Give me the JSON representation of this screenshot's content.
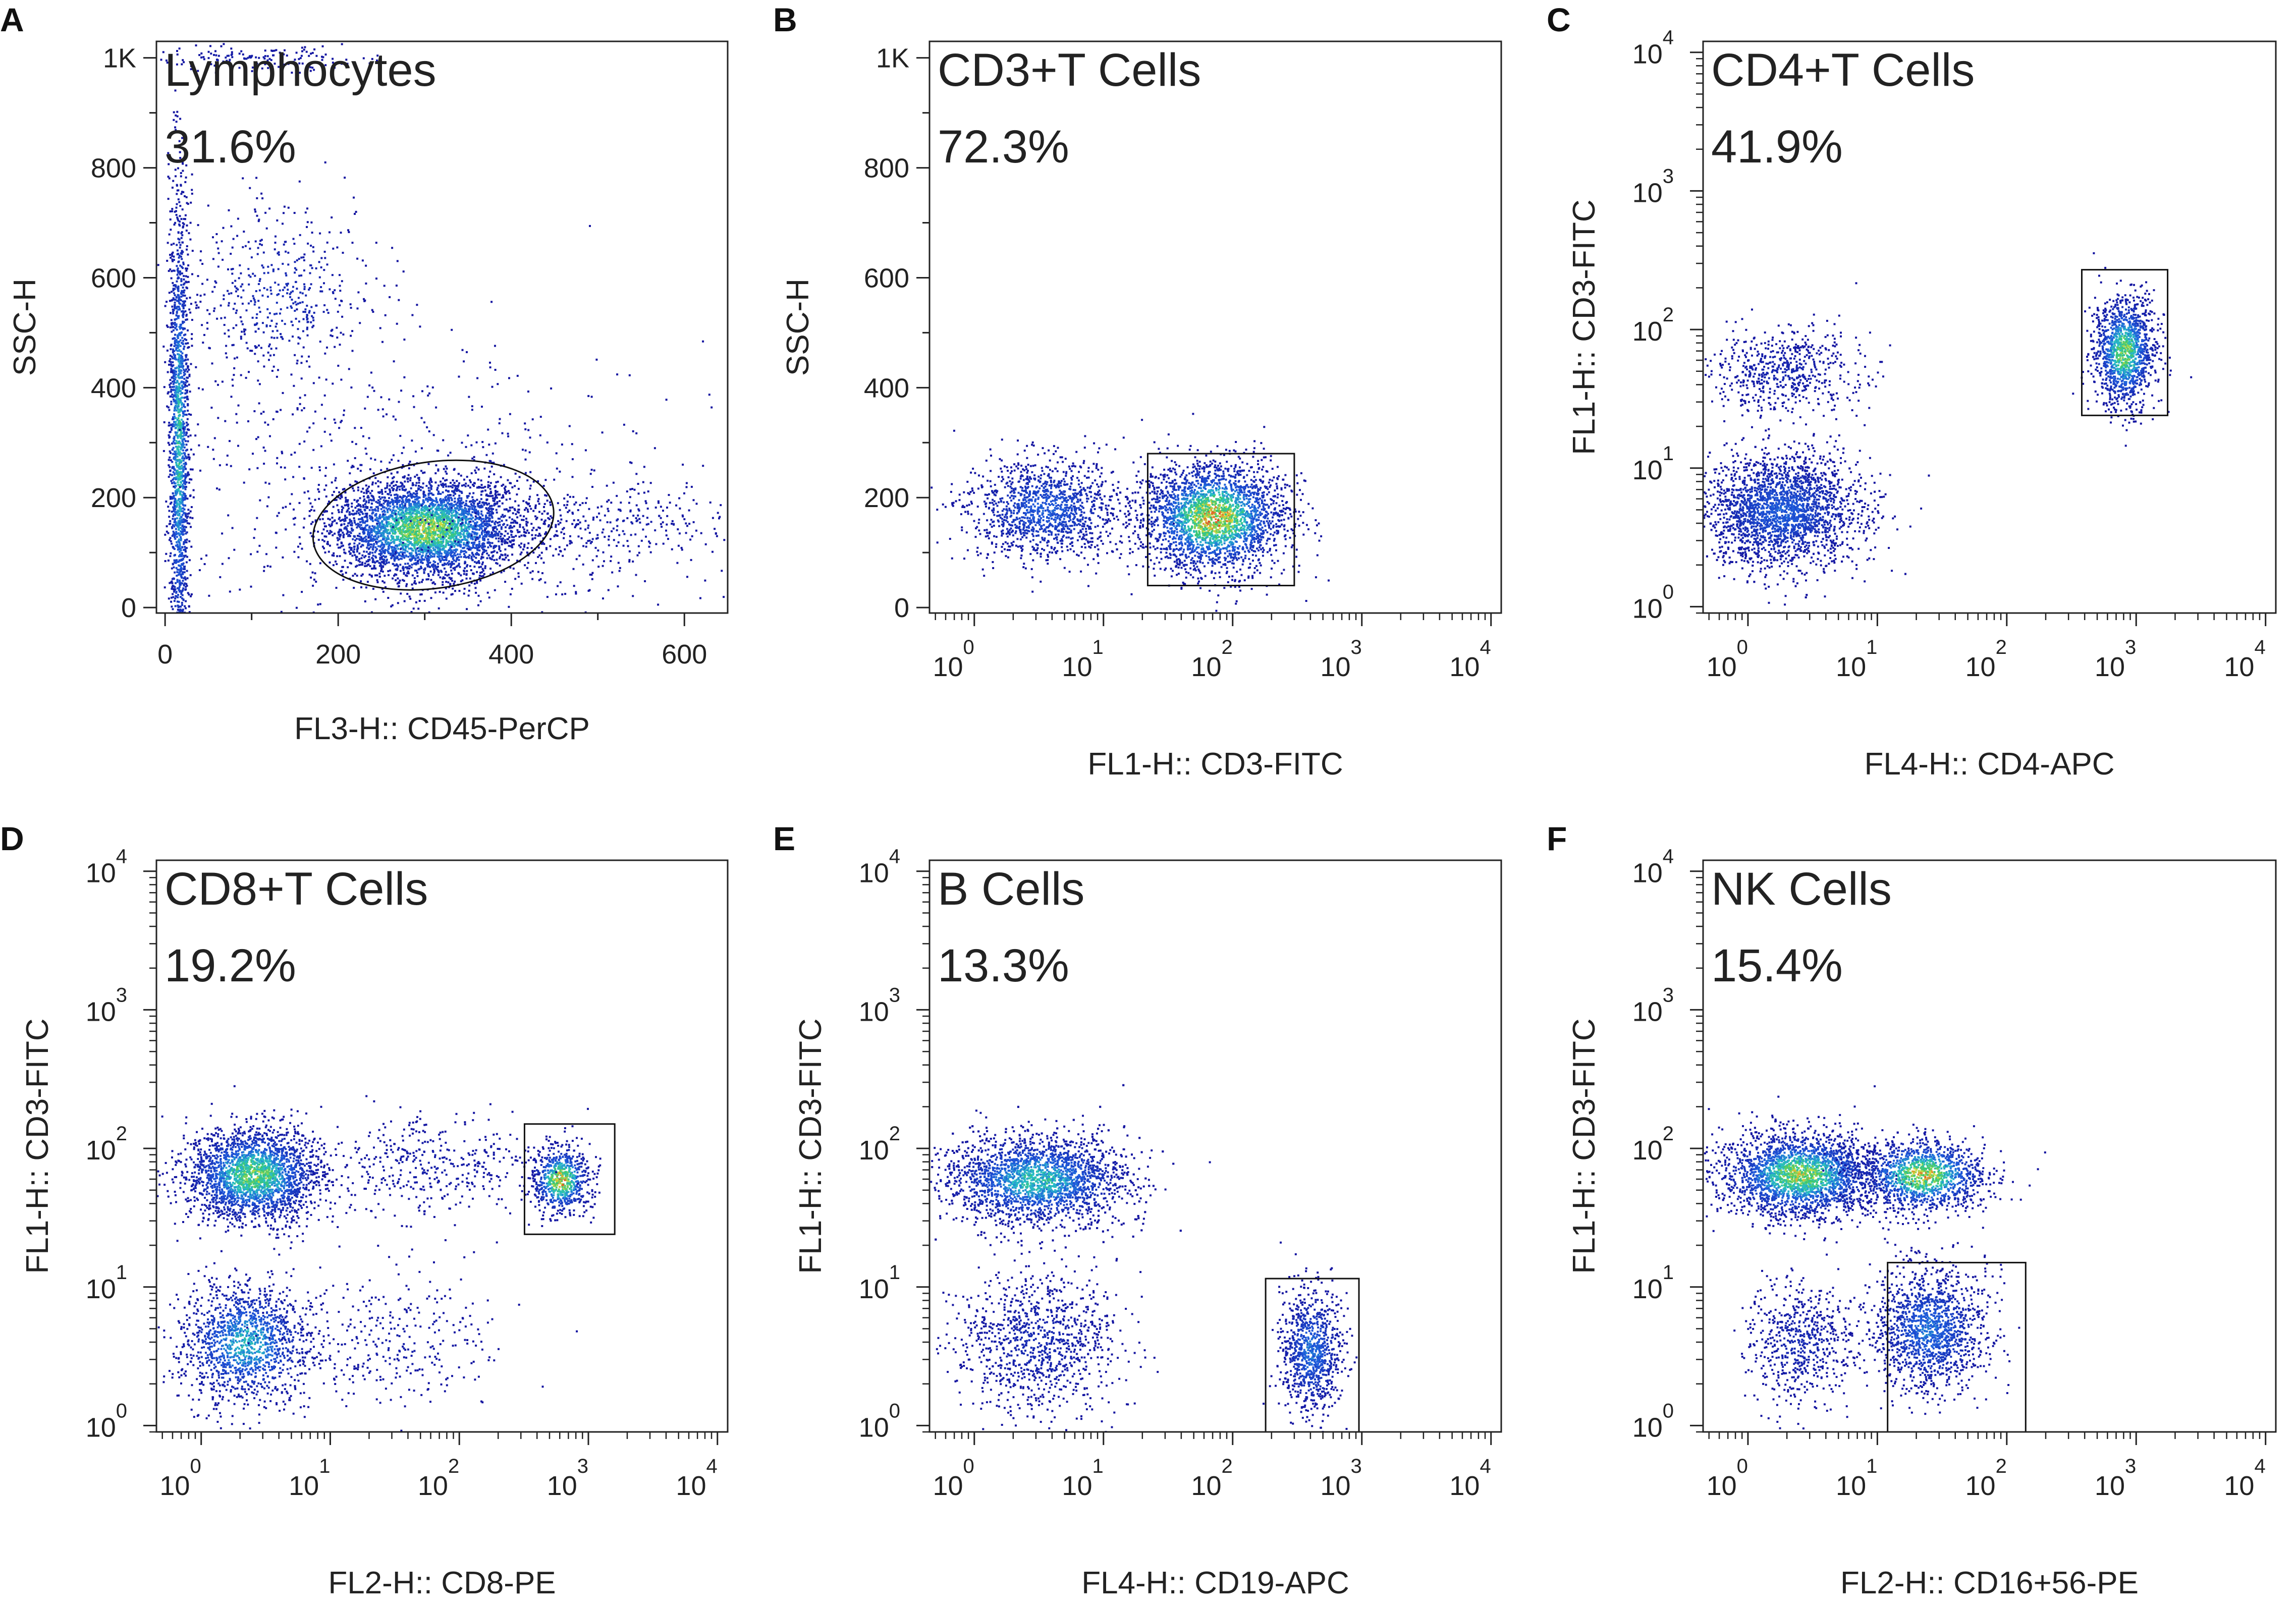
{
  "figure": {
    "description": "Flow cytometry gating panels"
  },
  "chart_data": [
    {
      "type": "scatter",
      "panel_letter": "A",
      "gate_name": "Lymphocytes",
      "gate_percent": "31.6%",
      "xlabel": "FL3-H:: CD45-PerCP",
      "ylabel": "SSC-H",
      "x_scale": "linear",
      "y_scale": "linear",
      "xlim": [
        -10,
        650
      ],
      "ylim": [
        -10,
        1030
      ],
      "x_ticks": [
        {
          "v": 0,
          "label": "0"
        },
        {
          "v": 200,
          "label": "200"
        },
        {
          "v": 400,
          "label": "400"
        },
        {
          "v": 600,
          "label": "600"
        }
      ],
      "y_ticks": [
        {
          "v": 0,
          "label": "0"
        },
        {
          "v": 200,
          "label": "200"
        },
        {
          "v": 400,
          "label": "400"
        },
        {
          "v": 600,
          "label": "600"
        },
        {
          "v": 800,
          "label": "800"
        },
        {
          "v": 1000,
          "label": "1K"
        }
      ],
      "gate": {
        "shape": "ellipse",
        "cx": 310,
        "cy": 150,
        "rx": 140,
        "ry": 115,
        "angle_deg": 8
      },
      "clusters": [
        {
          "x": 300,
          "y": 145,
          "sx": 55,
          "sy": 45,
          "n": 3800,
          "heat": 0.75
        },
        {
          "x": 15,
          "y": 300,
          "sx": 6,
          "sy": 230,
          "n": 1700,
          "heat": 0.55
        },
        {
          "x": 130,
          "y": 570,
          "sx": 55,
          "sy": 85,
          "n": 500,
          "heat": 0.12
        },
        {
          "x": 280,
          "y": 200,
          "sx": 150,
          "sy": 150,
          "n": 650,
          "heat": 0.05
        },
        {
          "x": 520,
          "y": 150,
          "sx": 70,
          "sy": 40,
          "n": 300,
          "heat": 0.05
        },
        {
          "x": 90,
          "y": 1000,
          "sx": 60,
          "sy": 12,
          "n": 160,
          "heat": 0.05
        }
      ]
    },
    {
      "type": "scatter",
      "panel_letter": "B",
      "gate_name": "CD3+T Cells",
      "gate_percent": "72.3%",
      "xlabel": "FL1-H:: CD3-FITC",
      "ylabel": "SSC-H",
      "x_scale": "log",
      "y_scale": "linear",
      "xlim": [
        0.45,
        12000
      ],
      "ylim": [
        -10,
        1030
      ],
      "x_ticks": [
        {
          "v": 1,
          "label": "10",
          "exp": "0"
        },
        {
          "v": 10,
          "label": "10",
          "exp": "1"
        },
        {
          "v": 100,
          "label": "10",
          "exp": "2"
        },
        {
          "v": 1000,
          "label": "10",
          "exp": "3"
        },
        {
          "v": 10000,
          "label": "10",
          "exp": "4"
        }
      ],
      "y_ticks": [
        {
          "v": 0,
          "label": "0"
        },
        {
          "v": 200,
          "label": "200"
        },
        {
          "v": 400,
          "label": "400"
        },
        {
          "v": 600,
          "label": "600"
        },
        {
          "v": 800,
          "label": "800"
        },
        {
          "v": 1000,
          "label": "1K"
        }
      ],
      "gate": {
        "shape": "rect",
        "x0": 22,
        "x1": 300,
        "y0": 40,
        "y1": 280
      },
      "clusters": [
        {
          "x": 70,
          "y": 165,
          "sx": 0.28,
          "sy": 50,
          "n": 2600,
          "heat": 0.85
        },
        {
          "x": 3.5,
          "y": 180,
          "sx": 0.3,
          "sy": 45,
          "n": 1300,
          "heat": 0.3
        }
      ]
    },
    {
      "type": "scatter",
      "panel_letter": "C",
      "gate_name": "CD4+T Cells",
      "gate_percent": "41.9%",
      "xlabel": "FL4-H:: CD4-APC",
      "ylabel": "FL1-H:: CD3-FITC",
      "x_scale": "log",
      "y_scale": "log",
      "xlim": [
        0.45,
        12000
      ],
      "ylim": [
        0.9,
        12000
      ],
      "x_ticks": [
        {
          "v": 1,
          "label": "10",
          "exp": "0"
        },
        {
          "v": 10,
          "label": "10",
          "exp": "1"
        },
        {
          "v": 100,
          "label": "10",
          "exp": "2"
        },
        {
          "v": 1000,
          "label": "10",
          "exp": "3"
        },
        {
          "v": 10000,
          "label": "10",
          "exp": "4"
        }
      ],
      "y_ticks": [
        {
          "v": 1,
          "label": "10",
          "exp": "0"
        },
        {
          "v": 10,
          "label": "10",
          "exp": "1"
        },
        {
          "v": 100,
          "label": "10",
          "exp": "2"
        },
        {
          "v": 1000,
          "label": "10",
          "exp": "3"
        },
        {
          "v": 10000,
          "label": "10",
          "exp": "4"
        }
      ],
      "gate": {
        "shape": "rect",
        "x0": 380,
        "x1": 1750,
        "y0": 24,
        "y1": 270
      },
      "clusters": [
        {
          "x": 800,
          "y": 70,
          "sx": 0.12,
          "sy": 0.2,
          "n": 1300,
          "heat": 0.7
        },
        {
          "x": 1.8,
          "y": 5,
          "sx": 0.3,
          "sy": 0.2,
          "n": 2600,
          "heat": 0.3
        },
        {
          "x": 1.8,
          "y": 50,
          "sx": 0.3,
          "sy": 0.15,
          "n": 600,
          "heat": 0.08
        }
      ]
    },
    {
      "type": "scatter",
      "panel_letter": "D",
      "gate_name": "CD8+T Cells",
      "gate_percent": "19.2%",
      "xlabel": "FL2-H:: CD8-PE",
      "ylabel": "FL1-H:: CD3-FITC",
      "x_scale": "log",
      "y_scale": "log",
      "xlim": [
        0.45,
        12000
      ],
      "ylim": [
        0.9,
        12000
      ],
      "x_ticks": [
        {
          "v": 1,
          "label": "10",
          "exp": "0"
        },
        {
          "v": 10,
          "label": "10",
          "exp": "1"
        },
        {
          "v": 100,
          "label": "10",
          "exp": "2"
        },
        {
          "v": 1000,
          "label": "10",
          "exp": "3"
        },
        {
          "v": 10000,
          "label": "10",
          "exp": "4"
        }
      ],
      "y_ticks": [
        {
          "v": 1,
          "label": "10",
          "exp": "0"
        },
        {
          "v": 10,
          "label": "10",
          "exp": "1"
        },
        {
          "v": 100,
          "label": "10",
          "exp": "2"
        },
        {
          "v": 1000,
          "label": "10",
          "exp": "3"
        },
        {
          "v": 10000,
          "label": "10",
          "exp": "4"
        }
      ],
      "gate": {
        "shape": "rect",
        "x0": 320,
        "x1": 1600,
        "y0": 24,
        "y1": 150
      },
      "clusters": [
        {
          "x": 2.5,
          "y": 65,
          "sx": 0.26,
          "sy": 0.17,
          "n": 2400,
          "heat": 0.7
        },
        {
          "x": 2.2,
          "y": 4,
          "sx": 0.25,
          "sy": 0.22,
          "n": 1400,
          "heat": 0.5
        },
        {
          "x": 600,
          "y": 60,
          "sx": 0.11,
          "sy": 0.12,
          "n": 700,
          "heat": 0.85
        },
        {
          "x": 60,
          "y": 75,
          "sx": 0.45,
          "sy": 0.18,
          "n": 400,
          "heat": 0.05
        },
        {
          "x": 30,
          "y": 4,
          "sx": 0.4,
          "sy": 0.25,
          "n": 300,
          "heat": 0.05
        }
      ]
    },
    {
      "type": "scatter",
      "panel_letter": "E",
      "gate_name": "B Cells",
      "gate_percent": "13.3%",
      "xlabel": "FL4-H:: CD19-APC",
      "ylabel": "FL1-H:: CD3-FITC",
      "x_scale": "log",
      "y_scale": "log",
      "xlim": [
        0.45,
        12000
      ],
      "ylim": [
        0.9,
        12000
      ],
      "x_ticks": [
        {
          "v": 1,
          "label": "10",
          "exp": "0"
        },
        {
          "v": 10,
          "label": "10",
          "exp": "1"
        },
        {
          "v": 100,
          "label": "10",
          "exp": "2"
        },
        {
          "v": 1000,
          "label": "10",
          "exp": "3"
        },
        {
          "v": 10000,
          "label": "10",
          "exp": "4"
        }
      ],
      "y_ticks": [
        {
          "v": 1,
          "label": "10",
          "exp": "0"
        },
        {
          "v": 10,
          "label": "10",
          "exp": "1"
        },
        {
          "v": 100,
          "label": "10",
          "exp": "2"
        },
        {
          "v": 1000,
          "label": "10",
          "exp": "3"
        },
        {
          "v": 10000,
          "label": "10",
          "exp": "4"
        }
      ],
      "gate": {
        "shape": "rect",
        "x0": 180,
        "x1": 950,
        "y0": 0.9,
        "y1": 11.5
      },
      "clusters": [
        {
          "x": 3,
          "y": 60,
          "sx": 0.35,
          "sy": 0.16,
          "n": 3000,
          "heat": 0.55
        },
        {
          "x": 3,
          "y": 4,
          "sx": 0.32,
          "sy": 0.25,
          "n": 1000,
          "heat": 0.1
        },
        {
          "x": 400,
          "y": 3.5,
          "sx": 0.12,
          "sy": 0.22,
          "n": 900,
          "heat": 0.35
        }
      ]
    },
    {
      "type": "scatter",
      "panel_letter": "F",
      "gate_name": "NK Cells",
      "gate_percent": "15.4%",
      "xlabel": "FL2-H:: CD16+56-PE",
      "ylabel": "FL1-H:: CD3-FITC",
      "x_scale": "log",
      "y_scale": "log",
      "xlim": [
        0.45,
        12000
      ],
      "ylim": [
        0.9,
        12000
      ],
      "x_ticks": [
        {
          "v": 1,
          "label": "10",
          "exp": "0"
        },
        {
          "v": 10,
          "label": "10",
          "exp": "1"
        },
        {
          "v": 100,
          "label": "10",
          "exp": "2"
        },
        {
          "v": 1000,
          "label": "10",
          "exp": "3"
        },
        {
          "v": 10000,
          "label": "10",
          "exp": "4"
        }
      ],
      "y_ticks": [
        {
          "v": 1,
          "label": "10",
          "exp": "0"
        },
        {
          "v": 10,
          "label": "10",
          "exp": "1"
        },
        {
          "v": 100,
          "label": "10",
          "exp": "2"
        },
        {
          "v": 1000,
          "label": "10",
          "exp": "3"
        },
        {
          "v": 10000,
          "label": "10",
          "exp": "4"
        }
      ],
      "gate": {
        "shape": "rect",
        "x0": 12,
        "x1": 140,
        "y0": 0.9,
        "y1": 15
      },
      "clusters": [
        {
          "x": 2.5,
          "y": 65,
          "sx": 0.3,
          "sy": 0.15,
          "n": 2600,
          "heat": 0.75
        },
        {
          "x": 22,
          "y": 65,
          "sx": 0.25,
          "sy": 0.13,
          "n": 1300,
          "heat": 0.8
        },
        {
          "x": 25,
          "y": 5,
          "sx": 0.22,
          "sy": 0.22,
          "n": 1400,
          "heat": 0.35
        },
        {
          "x": 2.5,
          "y": 4,
          "sx": 0.2,
          "sy": 0.22,
          "n": 600,
          "heat": 0.1
        }
      ]
    }
  ]
}
